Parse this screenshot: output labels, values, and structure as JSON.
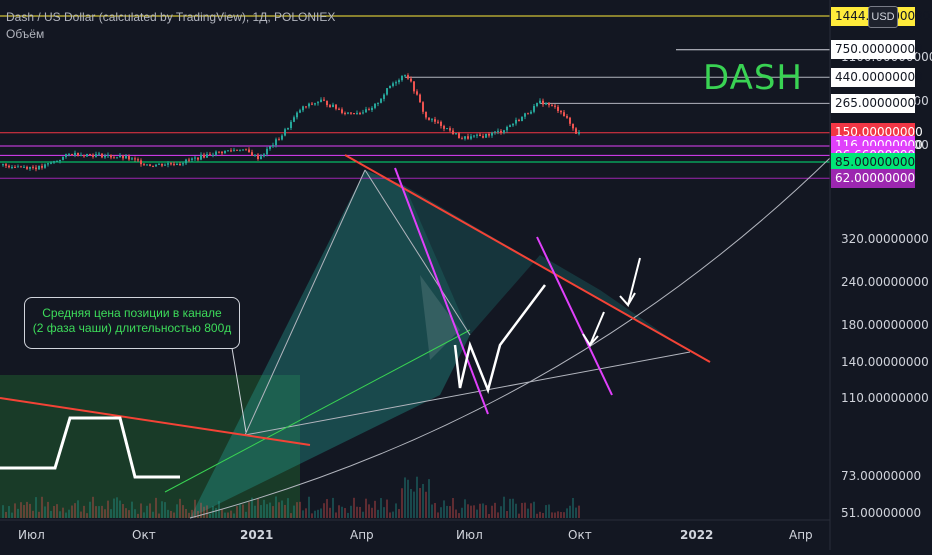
{
  "header": {
    "title": "Dash / US Dollar (calculated by TradingView), 1Д, POLONIEX",
    "volume_label": "Объём",
    "currency_badge": "USD"
  },
  "annotations": {
    "dash_label": "DASH",
    "callout_line1": "Средняя цена позиции в канале",
    "callout_line2": "(2 фаза чаши) длительностью 800д"
  },
  "chart_data": {
    "type": "line",
    "yscale": "log",
    "ylim": [
      48,
      1600
    ],
    "y_tick_labels": [
      "1100.00000000",
      "880.00000000",
      "600.00000000",
      "320.00000000",
      "240.00000000",
      "180.00000000",
      "140.00000000",
      "110.00000000",
      "73.00000000",
      "51.00000000"
    ],
    "x_tick_labels": [
      "Июл",
      "Окт",
      "2021",
      "Апр",
      "Июл",
      "Окт",
      "2022",
      "Апр"
    ],
    "price_levels": [
      {
        "value": 1444,
        "label": "1444.00000000",
        "bg": "#ffeb3b",
        "fg": "#131722"
      },
      {
        "value": 750,
        "label": "750.00000000",
        "bg": "#ffffff",
        "fg": "#131722"
      },
      {
        "value": 440,
        "label": "440.00000000",
        "bg": "#ffffff",
        "fg": "#131722"
      },
      {
        "value": 265,
        "label": "265.00000000",
        "bg": "#ffffff",
        "fg": "#131722"
      },
      {
        "value": 150,
        "label": "150.00000000",
        "bg": "#f23645",
        "fg": "#ffffff"
      },
      {
        "value": 116,
        "label": "116.00000000",
        "bg": "#e040fb",
        "fg": "#ffffff"
      },
      {
        "value": 96.66,
        "label": "96.66000000",
        "bg": "#e040fb",
        "fg": "#ffffff"
      },
      {
        "value": 85,
        "label": "85.00000000",
        "bg": "#00e676",
        "fg": "#131722"
      },
      {
        "value": 62,
        "label": "62.00000000",
        "bg": "#9c27b0",
        "fg": "#ffffff"
      }
    ],
    "colors": {
      "background": "#131722",
      "candle_up": "#26a69a",
      "candle_down": "#ef5350",
      "trendline": "#f44336",
      "channel": "#e040fb",
      "path": "#ffffff",
      "text_green": "#39d353"
    }
  }
}
